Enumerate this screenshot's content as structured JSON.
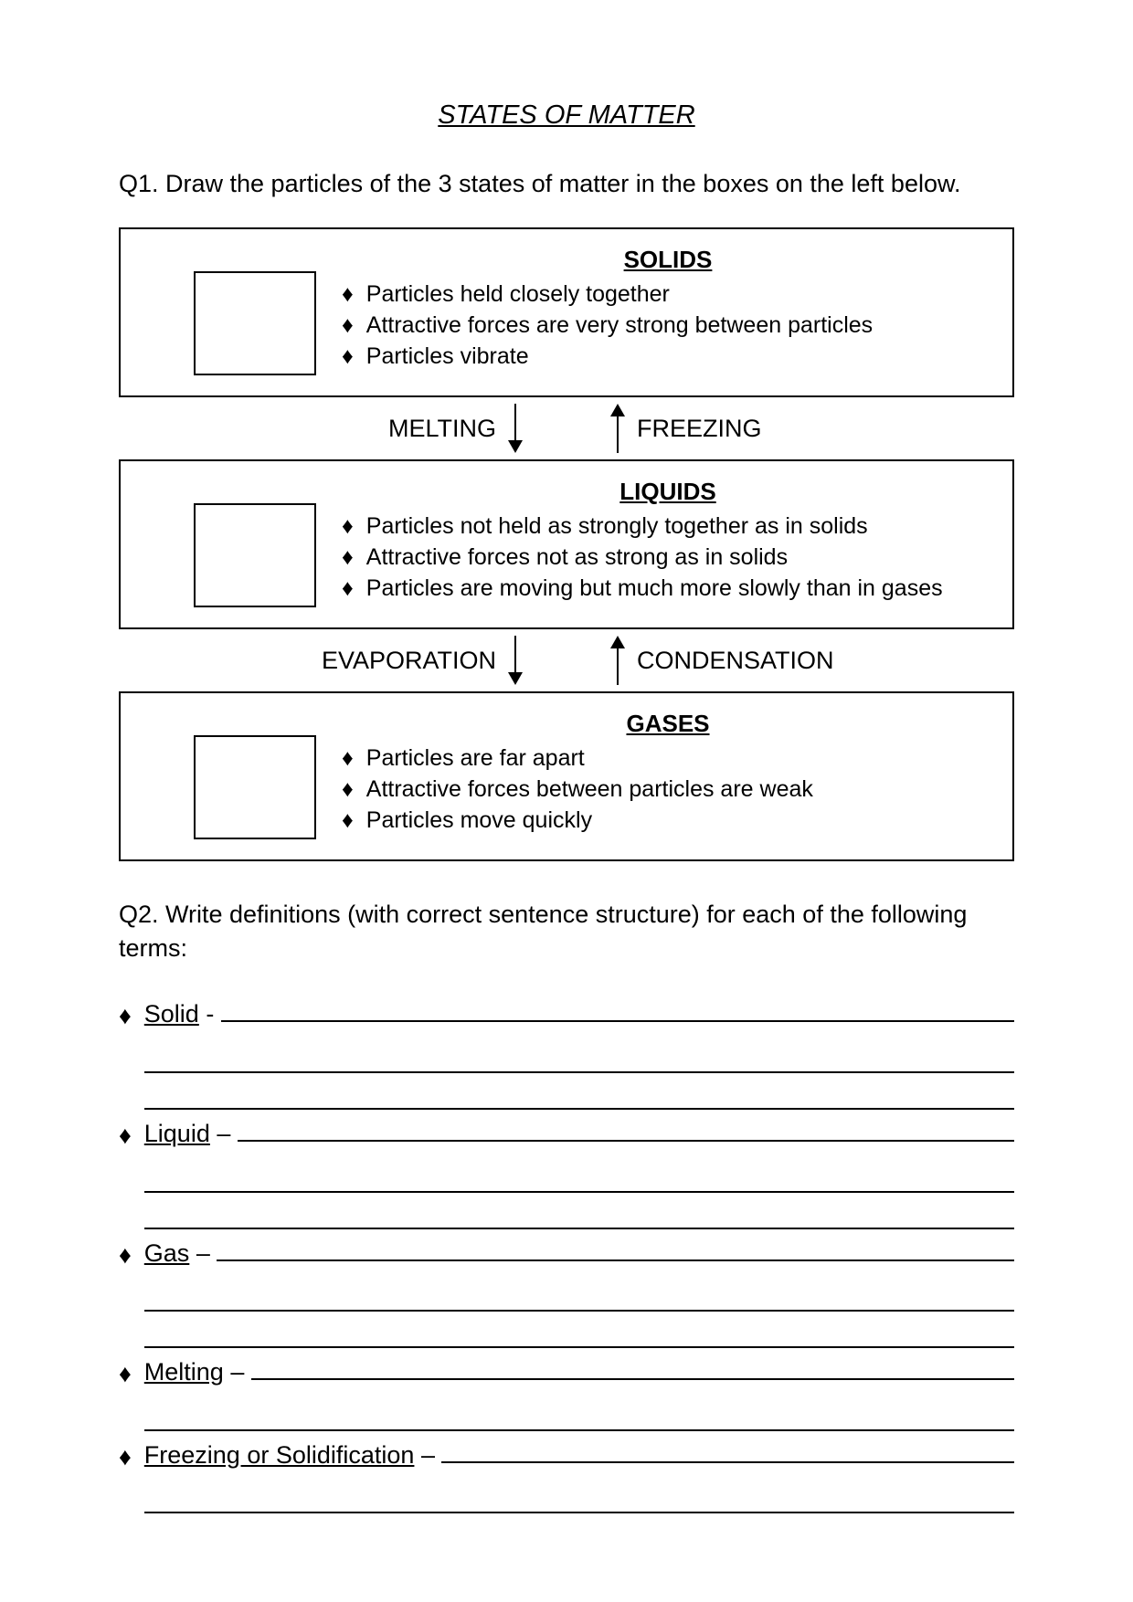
{
  "title": "STATES OF MATTER",
  "q1": "Q1. Draw the particles of the 3 states of matter in the boxes on the left below.",
  "solids": {
    "heading": "SOLIDS",
    "bullets": [
      "Particles held closely together",
      "Attractive forces are very strong between particles",
      "Particles vibrate"
    ]
  },
  "trans1": {
    "left": "MELTING",
    "right": "FREEZING"
  },
  "liquids": {
    "heading": "LIQUIDS",
    "bullets": [
      "Particles not held as strongly together as in solids",
      "Attractive forces not as strong as in solids",
      "Particles are moving but much more slowly than in gases"
    ]
  },
  "trans2": {
    "left": "EVAPORATION",
    "right": "CONDENSATION"
  },
  "gases": {
    "heading": "GASES",
    "bullets": [
      "Particles are far apart",
      "Attractive forces between particles are weak",
      "Particles move quickly"
    ]
  },
  "q2": "Q2. Write definitions (with correct sentence structure) for each of the following terms:",
  "defs": {
    "solid": {
      "term": "Solid",
      "sep": " - ",
      "extraLines": 2
    },
    "liquid": {
      "term": "Liquid",
      "sep": " – ",
      "extraLines": 2
    },
    "gas": {
      "term": "Gas",
      "sep": " – ",
      "extraLines": 2
    },
    "melting": {
      "term": "Melting",
      "sep": " – ",
      "extraLines": 1
    },
    "freezing": {
      "term": "Freezing or Solidification",
      "sep": " – ",
      "extraLines": 1
    }
  },
  "bulletGlyph": "♦"
}
